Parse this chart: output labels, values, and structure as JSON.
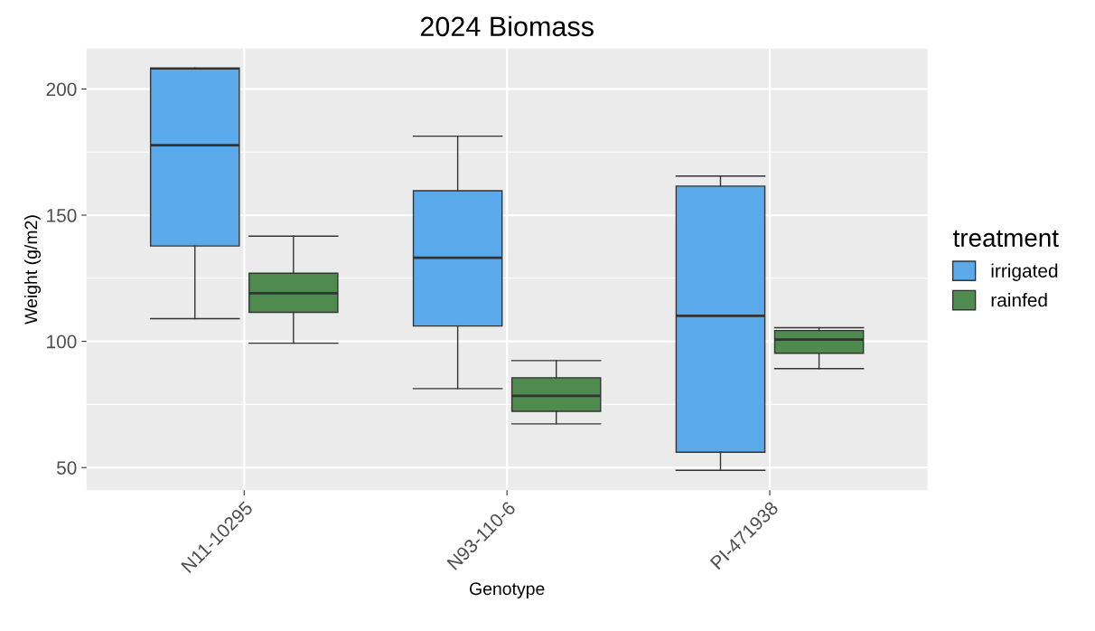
{
  "chart_data": {
    "type": "box",
    "title": "2024 Biomass",
    "xlabel": "Genotype",
    "ylabel": "Weight (g/m2)",
    "legend_title": "treatment",
    "legend": "right",
    "grid": true,
    "categories": [
      "N11-10295",
      "N93-110-6",
      "PI-471938"
    ],
    "ylim": [
      41,
      216
    ],
    "yticks": [
      50,
      100,
      150,
      200
    ],
    "series": [
      {
        "name": "irrigated",
        "color": "#5aaaeb",
        "boxes": [
          {
            "low": 109,
            "q1": 137.8,
            "median": 177.7,
            "q3": 207.9,
            "high": 208.3
          },
          {
            "low": 81.3,
            "q1": 106.1,
            "median": 133.1,
            "q3": 159.7,
            "high": 181.3
          },
          {
            "low": 48.9,
            "q1": 56.1,
            "median": 110.1,
            "q3": 161.5,
            "high": 165.5
          }
        ]
      },
      {
        "name": "rainfed",
        "color": "#4f8a4f",
        "boxes": [
          {
            "low": 99.3,
            "q1": 111.5,
            "median": 119.1,
            "q3": 127,
            "high": 141.7
          },
          {
            "low": 67.3,
            "q1": 72.3,
            "median": 78.4,
            "q3": 85.6,
            "high": 92.4
          },
          {
            "low": 89.2,
            "q1": 95.3,
            "median": 100.7,
            "q3": 104.3,
            "high": 105.4
          }
        ]
      }
    ]
  }
}
